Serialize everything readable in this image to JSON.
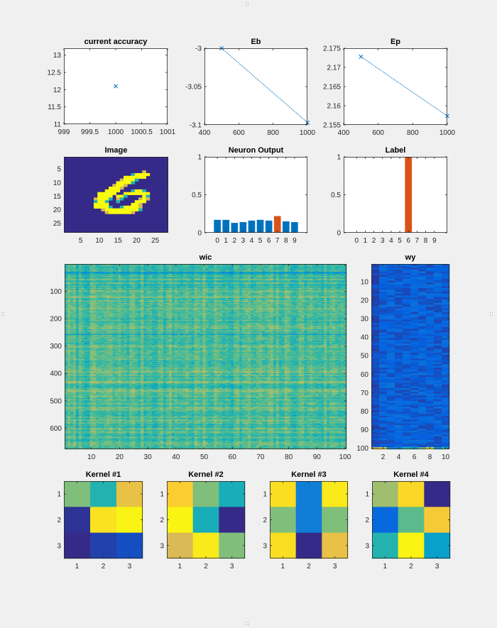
{
  "window": {
    "grip_symbol": "::"
  },
  "colors": {
    "axis": "#262626",
    "series": "#0072bd",
    "highlight": "#d95319",
    "background": "#f0f0f0",
    "axes_background": "#ffffff",
    "parula": [
      "#352a87",
      "#0363e1",
      "#1485d4",
      "#06a7c6",
      "#38b99e",
      "#92bf73",
      "#d9ba56",
      "#fcce2e",
      "#f9fb0e"
    ]
  },
  "chart_data": [
    {
      "id": "accuracy",
      "type": "scatter",
      "title": "current accuracy",
      "marker": "x",
      "x": [
        1000
      ],
      "y": [
        12.1
      ],
      "xlim": [
        999,
        1001
      ],
      "ylim": [
        11,
        13.2
      ],
      "xticks": [
        "999",
        "999.5",
        "1000",
        "1000.5",
        "1001"
      ],
      "yticks": [
        "11",
        "11.5",
        "12",
        "12.5",
        "13"
      ]
    },
    {
      "id": "eb",
      "type": "line",
      "title": "Eb",
      "marker": "x",
      "x": [
        500,
        1000
      ],
      "y": [
        -3.0,
        -3.097
      ],
      "xlim": [
        400,
        1000
      ],
      "ylim": [
        -3.1,
        -3.0
      ],
      "xticks": [
        "400",
        "600",
        "800",
        "1000"
      ],
      "yticks": [
        "-3.1",
        "-3.05",
        "-3"
      ]
    },
    {
      "id": "ep",
      "type": "line",
      "title": "Ep",
      "marker": "x",
      "x": [
        500,
        1000
      ],
      "y": [
        2.1728,
        2.1573
      ],
      "xlim": [
        400,
        1000
      ],
      "ylim": [
        2.155,
        2.175
      ],
      "xticks": [
        "400",
        "600",
        "800",
        "1000"
      ],
      "yticks": [
        "2.155",
        "2.16",
        "2.165",
        "2.17",
        "2.175"
      ]
    },
    {
      "id": "image",
      "type": "heatmap",
      "title": "Image",
      "xlim": [
        0.5,
        28.5
      ],
      "ylim": [
        0.5,
        28.5
      ],
      "xticks": [
        "5",
        "10",
        "15",
        "20",
        "25"
      ],
      "yticks": [
        "5",
        "10",
        "15",
        "20",
        "25"
      ],
      "bitmap": [
        "............................",
        "............................",
        "............................",
        "............................",
        "............................",
        ".....................#......",
        "..................#####.....",
        "................######......",
        "...............#####........",
        "..............#####.........",
        ".............####...........",
        "............####............",
        "...........####...####......",
        ".........#####..#######.....",
        ".........####.###....##.....",
        "........#####.##....###.....",
        "........####..#....###......",
        "........####......###.......",
        "........#####..######.......",
        "..........###########.......",
        "...........########.........",
        "............................",
        "............................",
        "............................",
        "............................",
        "............................",
        "............................",
        "............................"
      ]
    },
    {
      "id": "neuron",
      "type": "bar",
      "title": "Neuron Output",
      "categories": [
        "0",
        "1",
        "2",
        "3",
        "4",
        "5",
        "6",
        "7",
        "8",
        "9"
      ],
      "values": [
        0.17,
        0.17,
        0.13,
        0.14,
        0.16,
        0.17,
        0.16,
        0.22,
        0.15,
        0.14
      ],
      "highlight_index": 7,
      "ylim": [
        0,
        1
      ],
      "yticks": [
        "0",
        "0.5",
        "1"
      ]
    },
    {
      "id": "label",
      "type": "bar",
      "title": "Label",
      "categories": [
        "0",
        "1",
        "2",
        "3",
        "4",
        "5",
        "6",
        "7",
        "8",
        "9"
      ],
      "values": [
        0,
        0,
        0,
        0,
        0,
        0,
        1,
        0,
        0,
        0
      ],
      "highlight_index": 6,
      "ylim": [
        0,
        1
      ],
      "yticks": [
        "0",
        "0.5",
        "1"
      ]
    },
    {
      "id": "wic",
      "type": "heatmap",
      "title": "wic",
      "rows": 676,
      "cols": 100,
      "xlim": [
        0.5,
        100.5
      ],
      "ylim": [
        0.5,
        676.5
      ],
      "xticks": [
        "10",
        "20",
        "30",
        "40",
        "50",
        "60",
        "70",
        "80",
        "90",
        "100"
      ],
      "yticks": [
        "100",
        "200",
        "300",
        "400",
        "500",
        "600"
      ]
    },
    {
      "id": "wy",
      "type": "heatmap",
      "title": "wy",
      "rows": 100,
      "cols": 10,
      "xlim": [
        0.5,
        10.5
      ],
      "ylim": [
        0.5,
        100.5
      ],
      "xticks": [
        "2",
        "4",
        "6",
        "8",
        "10"
      ],
      "yticks": [
        "10",
        "20",
        "30",
        "40",
        "50",
        "60",
        "70",
        "80",
        "90",
        "100"
      ]
    },
    {
      "id": "kernel1",
      "type": "heatmap",
      "title": "Kernel #1",
      "values": [
        [
          0.6,
          0.45,
          0.8
        ],
        [
          0.02,
          0.93,
          0.98
        ],
        [
          0.0,
          0.05,
          0.08
        ]
      ],
      "xticks": [
        "1",
        "2",
        "3"
      ],
      "yticks": [
        "1",
        "2",
        "3"
      ]
    },
    {
      "id": "kernel2",
      "type": "heatmap",
      "title": "Kernel #2",
      "values": [
        [
          0.87,
          0.6,
          0.42
        ],
        [
          0.98,
          0.42,
          0.0
        ],
        [
          0.75,
          0.95,
          0.6
        ]
      ],
      "xticks": [
        "1",
        "2",
        "3"
      ],
      "yticks": [
        "1",
        "2",
        "3"
      ]
    },
    {
      "id": "kernel3",
      "type": "heatmap",
      "title": "Kernel #3",
      "values": [
        [
          0.92,
          0.22,
          0.95
        ],
        [
          0.6,
          0.22,
          0.6
        ],
        [
          0.92,
          0.0,
          0.8
        ]
      ],
      "xticks": [
        "1",
        "2",
        "3"
      ],
      "yticks": [
        "1",
        "2",
        "3"
      ]
    },
    {
      "id": "kernel4",
      "type": "heatmap",
      "title": "Kernel #4",
      "values": [
        [
          0.65,
          0.9,
          0.0
        ],
        [
          0.15,
          0.55,
          0.85
        ],
        [
          0.45,
          0.98,
          0.35
        ]
      ],
      "xticks": [
        "1",
        "2",
        "3"
      ],
      "yticks": [
        "1",
        "2",
        "3"
      ]
    }
  ]
}
